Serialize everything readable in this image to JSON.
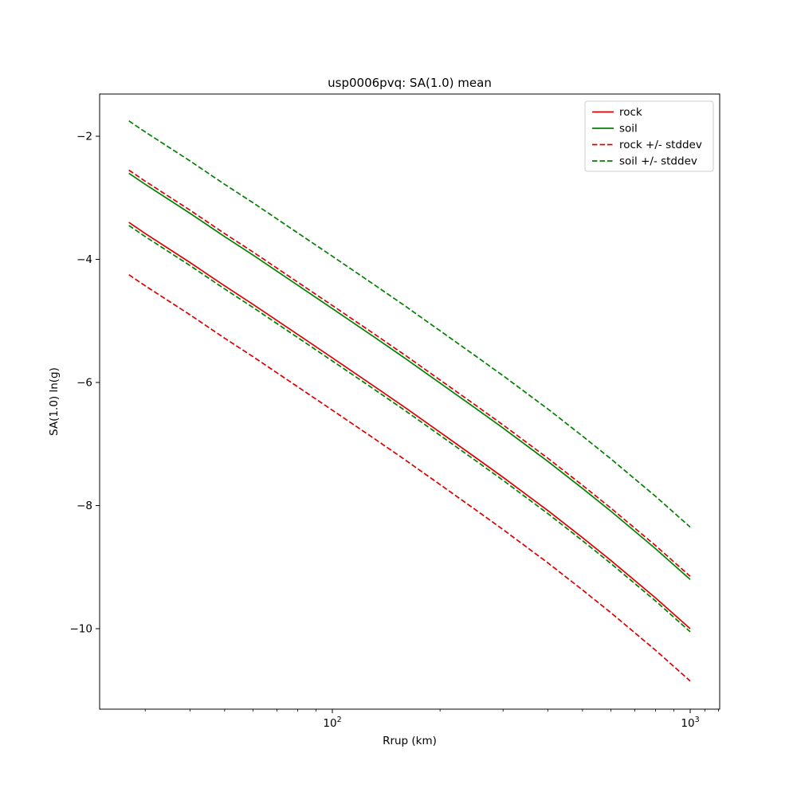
{
  "figure": {
    "background_color": "#ffffff"
  },
  "chart_data": {
    "type": "line",
    "title": "usp0006pvq: SA(1.0) mean",
    "xlabel": "Rrup (km)",
    "ylabel": "SA(1.0) ln(g)",
    "x_scale": "log",
    "y_scale": "linear",
    "xlim": [
      22.4,
      1210
    ],
    "ylim": [
      -11.3,
      -1.3
    ],
    "grid": false,
    "yticks": [
      -2,
      -4,
      -6,
      -8,
      -10
    ],
    "xticks": [
      100,
      1000
    ],
    "x_minor_ticks": [
      30,
      40,
      50,
      60,
      70,
      80,
      90,
      200,
      300,
      400,
      500,
      600,
      700,
      800,
      900,
      1100,
      1200
    ],
    "x": [
      27,
      30,
      40,
      50,
      60,
      80,
      100,
      130,
      160,
      200,
      250,
      300,
      400,
      500,
      600,
      800,
      1000
    ],
    "series": [
      {
        "name": "rock-mean",
        "color": "#dd0000",
        "style": "solid",
        "values": [
          -3.4,
          -3.58,
          -4.05,
          -4.43,
          -4.73,
          -5.22,
          -5.6,
          -6.05,
          -6.41,
          -6.81,
          -7.21,
          -7.54,
          -8.08,
          -8.52,
          -8.89,
          -9.5,
          -10.0
        ]
      },
      {
        "name": "soil-mean",
        "color": "#008000",
        "style": "solid",
        "values": [
          -2.6,
          -2.78,
          -3.25,
          -3.63,
          -3.93,
          -4.42,
          -4.8,
          -5.25,
          -5.61,
          -6.01,
          -6.41,
          -6.74,
          -7.28,
          -7.72,
          -8.09,
          -8.7,
          -9.2
        ]
      },
      {
        "name": "rock-plus-stddev",
        "color": "#dd0000",
        "style": "dashed",
        "values": [
          -2.55,
          -2.73,
          -3.2,
          -3.58,
          -3.88,
          -4.37,
          -4.75,
          -5.2,
          -5.56,
          -5.96,
          -6.36,
          -6.69,
          -7.23,
          -7.67,
          -8.04,
          -8.65,
          -9.15
        ]
      },
      {
        "name": "rock-minus-stddev",
        "color": "#dd0000",
        "style": "dashed",
        "values": [
          -4.25,
          -4.43,
          -4.9,
          -5.28,
          -5.58,
          -6.07,
          -6.45,
          -6.9,
          -7.26,
          -7.66,
          -8.06,
          -8.39,
          -8.93,
          -9.37,
          -9.74,
          -10.35,
          -10.85
        ]
      },
      {
        "name": "soil-plus-stddev",
        "color": "#008000",
        "style": "dashed",
        "values": [
          -1.75,
          -1.93,
          -2.4,
          -2.78,
          -3.08,
          -3.57,
          -3.95,
          -4.4,
          -4.76,
          -5.16,
          -5.56,
          -5.89,
          -6.43,
          -6.87,
          -7.24,
          -7.85,
          -8.35
        ]
      },
      {
        "name": "soil-minus-stddev",
        "color": "#008000",
        "style": "dashed",
        "values": [
          -3.45,
          -3.63,
          -4.1,
          -4.48,
          -4.78,
          -5.27,
          -5.65,
          -6.1,
          -6.46,
          -6.86,
          -7.26,
          -7.59,
          -8.13,
          -8.57,
          -8.94,
          -9.55,
          -10.05
        ]
      }
    ],
    "legend": {
      "position": "upper right",
      "entries": [
        {
          "label": "rock",
          "color": "#dd0000",
          "style": "solid"
        },
        {
          "label": "soil",
          "color": "#008000",
          "style": "solid"
        },
        {
          "label": "rock +/- stddev",
          "color": "#dd0000",
          "style": "dashed"
        },
        {
          "label": "soil +/- stddev",
          "color": "#008000",
          "style": "dashed"
        }
      ]
    }
  }
}
